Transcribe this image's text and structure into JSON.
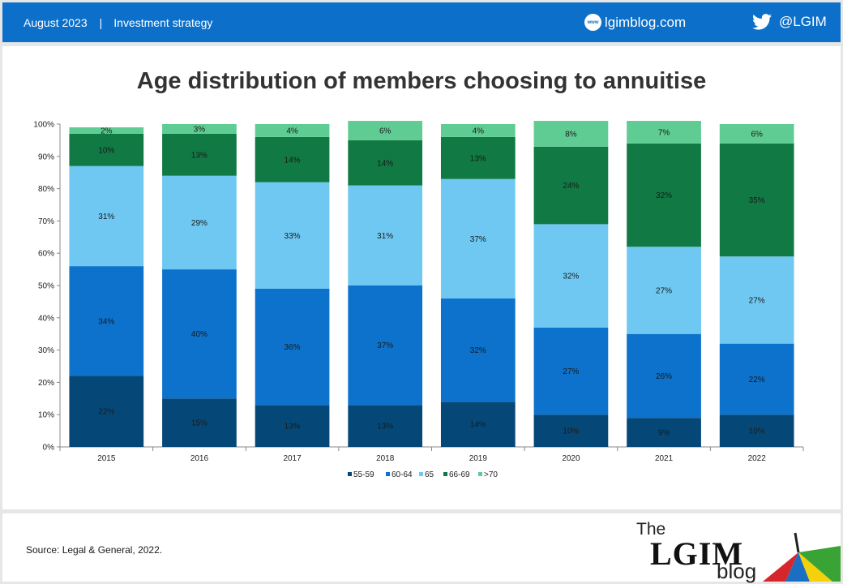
{
  "header": {
    "date": "August 2023",
    "separator": "|",
    "section": "Investment strategy",
    "site_icon": "www",
    "site": "lgimblog.com",
    "twitter_handle": "@LGIM"
  },
  "footer": {
    "source": "Source: Legal & General, 2022.",
    "logo_the": "The",
    "logo_lgim": "LGIM",
    "logo_blog": "blog"
  },
  "colors": {
    "header_bg": "#0c6fc9",
    "series": [
      "#054878",
      "#0c72cc",
      "#6ec8f2",
      "#117943",
      "#5fcc93"
    ]
  },
  "chart_data": {
    "type": "bar",
    "stacked": true,
    "title": "Age distribution of members choosing to annuitise",
    "categories": [
      "2015",
      "2016",
      "2017",
      "2018",
      "2019",
      "2020",
      "2021",
      "2022"
    ],
    "series": [
      {
        "name": "55-59",
        "values": [
          22,
          15,
          13,
          13,
          14,
          10,
          9,
          10
        ],
        "labels": [
          "22%",
          "15%",
          "13%",
          "13%",
          "14%",
          "10%",
          "9%",
          "10%"
        ]
      },
      {
        "name": "60-64",
        "values": [
          34,
          40,
          36,
          37,
          32,
          27,
          26,
          22
        ],
        "labels": [
          "34%",
          "40%",
          "36%",
          "37%",
          "32%",
          "27%",
          "26%",
          "22%"
        ]
      },
      {
        "name": "65",
        "values": [
          31,
          29,
          33,
          31,
          37,
          32,
          27,
          27
        ],
        "labels": [
          "31%",
          "29%",
          "33%",
          "31%",
          "37%",
          "32%",
          "27%",
          "27%"
        ]
      },
      {
        "name": "66-69",
        "values": [
          10,
          13,
          14,
          14,
          13,
          24,
          32,
          35
        ],
        "labels": [
          "10%",
          "13%",
          "14%",
          "14%",
          "13%",
          "24%",
          "32%",
          "35%"
        ]
      },
      {
        "name": ">70",
        "values": [
          2,
          3,
          4,
          6,
          4,
          8,
          7,
          6
        ],
        "labels": [
          "2%",
          "3%",
          "4%",
          "6%",
          "4%",
          "8%",
          "7%",
          "6%"
        ]
      }
    ],
    "ylim": [
      0,
      100
    ],
    "yticks": [
      "0%",
      "10%",
      "20%",
      "30%",
      "40%",
      "50%",
      "60%",
      "70%",
      "80%",
      "90%",
      "100%"
    ],
    "legend_position": "bottom",
    "grid": false
  }
}
